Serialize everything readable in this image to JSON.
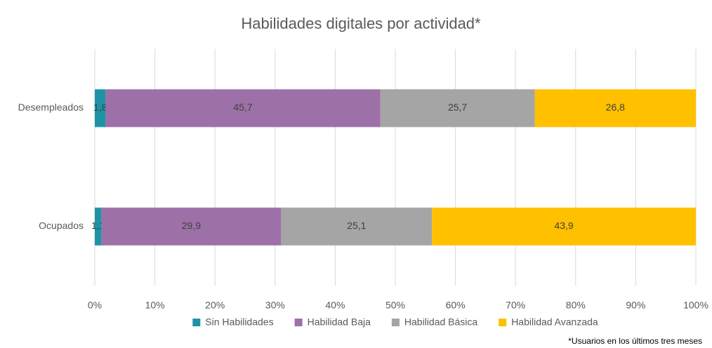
{
  "chart_data": {
    "type": "stacked_barh",
    "title": "Habilidades digitales por actividad*",
    "categories": [
      "Desempleados",
      "Ocupados"
    ],
    "series": [
      {
        "name": "Sin Habilidades",
        "color": "#1f93a6",
        "values": [
          1.8,
          1.1
        ],
        "value_labels": [
          "1,8",
          "1,1"
        ]
      },
      {
        "name": "Habilidad Baja",
        "color": "#9e70a8",
        "values": [
          45.7,
          29.9
        ],
        "value_labels": [
          "45,7",
          "29,9"
        ]
      },
      {
        "name": "Habilidad Básica",
        "color": "#a5a5a5",
        "values": [
          25.7,
          25.1
        ],
        "value_labels": [
          "25,7",
          "25,1"
        ]
      },
      {
        "name": "Habilidad Avanzada",
        "color": "#ffc000",
        "values": [
          26.8,
          43.9
        ],
        "value_labels": [
          "26,8",
          "43,9"
        ]
      }
    ],
    "xlim": [
      0,
      100
    ],
    "xticks": [
      {
        "value": 0,
        "label": "0%"
      },
      {
        "value": 10,
        "label": "10%"
      },
      {
        "value": 20,
        "label": "20%"
      },
      {
        "value": 30,
        "label": "30%"
      },
      {
        "value": 40,
        "label": "40%"
      },
      {
        "value": 50,
        "label": "50%"
      },
      {
        "value": 60,
        "label": "60%"
      },
      {
        "value": 70,
        "label": "70%"
      },
      {
        "value": 80,
        "label": "80%"
      },
      {
        "value": 90,
        "label": "90%"
      },
      {
        "value": 100,
        "label": "100%"
      }
    ],
    "grid": true,
    "legend": "bottom",
    "note": "*Usuarios en los últimos tres meses"
  }
}
